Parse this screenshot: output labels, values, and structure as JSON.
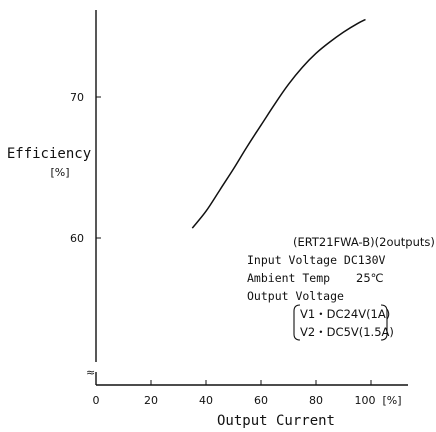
{
  "chart_data": {
    "type": "line",
    "title": "",
    "xlabel": "Output Current",
    "ylabel_line1": "Efficiency",
    "ylabel_line2": "[%]",
    "x_unit_label": "[%]",
    "x_ticks": [
      0,
      20,
      40,
      60,
      80,
      100
    ],
    "y_ticks": [
      60,
      70
    ],
    "axis_break": "≈",
    "xlim": [
      0,
      112
    ],
    "ylim_visible": [
      60,
      76
    ],
    "grid": false,
    "series": [
      {
        "x": [
          35,
          40,
          45,
          50,
          55,
          60,
          65,
          70,
          75,
          80,
          85,
          90,
          95,
          98
        ],
        "y": [
          60.7,
          61.9,
          63.4,
          64.9,
          66.5,
          68.0,
          69.5,
          70.9,
          72.1,
          73.1,
          73.9,
          74.6,
          75.2,
          75.5
        ]
      }
    ]
  },
  "annotations": {
    "model": "(ERT21FWA-B)(2outputs)",
    "input_voltage": "Input Voltage DC130V",
    "ambient_temp_label": "Ambient Temp",
    "ambient_temp_value": "25℃",
    "output_voltage_label": "Output Voltage",
    "v1": "V1・DC24V(1A)",
    "v2": "V2・DC5V(1.5A)"
  }
}
